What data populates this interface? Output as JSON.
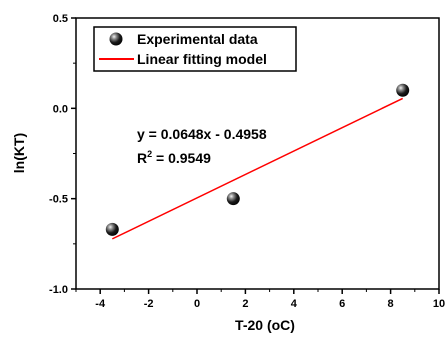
{
  "chart_data": {
    "type": "scatter",
    "xlabel": "T-20 (oC)",
    "ylabel": "ln(KT)",
    "xlim": [
      -5,
      10
    ],
    "ylim": [
      -1.0,
      0.5
    ],
    "x_ticks": [
      "-4",
      "-2",
      "0",
      "2",
      "4",
      "6",
      "8",
      "10"
    ],
    "y_ticks": [
      "0.5",
      "0.0",
      "-0.5",
      "-1.0"
    ],
    "grid": false,
    "legend_placement": "top-left",
    "series": [
      {
        "name": "Experimental data",
        "kind": "scatter",
        "marker": "black sphere",
        "x": [
          -3.5,
          1.5,
          8.5
        ],
        "y": [
          -0.67,
          -0.5,
          0.1
        ]
      },
      {
        "name": "Linear fitting model",
        "kind": "line",
        "color": "#ff0000",
        "x": [
          -3.5,
          8.5
        ],
        "y": [
          -0.7226,
          0.055
        ]
      }
    ],
    "annotations": {
      "equation": "y = 0.0648x - 0.4958",
      "r2_prefix": "R",
      "r2_sup": "2",
      "r2_value": " = 0.9549"
    }
  }
}
